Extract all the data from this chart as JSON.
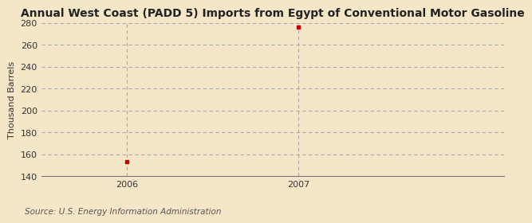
{
  "title": "Annual West Coast (PADD 5) Imports from Egypt of Conventional Motor Gasoline",
  "ylabel": "Thousand Barrels",
  "source": "Source: U.S. Energy Information Administration",
  "x": [
    2006,
    2007
  ],
  "y": [
    153,
    276
  ],
  "ylim": [
    140,
    280
  ],
  "yticks": [
    140,
    160,
    180,
    200,
    220,
    240,
    260,
    280
  ],
  "xlim": [
    2005.5,
    2008.2
  ],
  "xticks": [
    2006,
    2007
  ],
  "background_color": "#f5e6c8",
  "plot_bg_color": "#f5e6c8",
  "marker_color": "#cc0000",
  "grid_color": "#aaaaaa",
  "vline_color": "#aaaaaa",
  "title_fontsize": 10,
  "label_fontsize": 8,
  "tick_fontsize": 8,
  "source_fontsize": 7.5
}
